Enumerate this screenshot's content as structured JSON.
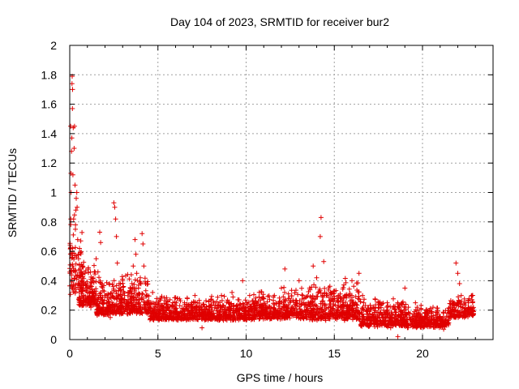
{
  "chart_data": {
    "type": "scatter",
    "title": "Day 104 of 2023, SRMTID for receiver bur2",
    "xlabel": "GPS time / hours",
    "ylabel": "SRMTID / TECUs",
    "xlim": [
      0,
      24
    ],
    "ylim": [
      0,
      2
    ],
    "xticks": [
      0,
      5,
      10,
      15,
      20
    ],
    "xtick_labels": [
      "0",
      "5",
      "10",
      "15",
      "20"
    ],
    "yticks": [
      0,
      0.2,
      0.4,
      0.6,
      0.8,
      1,
      1.2,
      1.4,
      1.6,
      1.8,
      2
    ],
    "ytick_labels": [
      "0",
      "0.2",
      "0.4",
      "0.6",
      "0.8",
      "1",
      "1.2",
      "1.4",
      "1.6",
      "1.8",
      "2"
    ],
    "grid": true,
    "marker": "+",
    "color": "#e00000",
    "series": [
      {
        "name": "SRMTID",
        "points": [
          [
            0.02,
            0.45
          ],
          [
            0.04,
            0.62
          ],
          [
            0.05,
            1.45
          ],
          [
            0.06,
            0.82
          ],
          [
            0.07,
            1.13
          ],
          [
            0.08,
            1.0
          ],
          [
            0.1,
            1.28
          ],
          [
            0.12,
            1.37
          ],
          [
            0.13,
            1.74
          ],
          [
            0.14,
            1.79
          ],
          [
            0.15,
            1.57
          ],
          [
            0.16,
            1.7
          ],
          [
            0.17,
            0.5
          ],
          [
            0.18,
            1.12
          ],
          [
            0.2,
            1.44
          ],
          [
            0.22,
            0.82
          ],
          [
            0.25,
            1.3
          ],
          [
            0.27,
            1.45
          ],
          [
            0.3,
            1.05
          ],
          [
            0.32,
            0.75
          ],
          [
            0.35,
            0.88
          ],
          [
            0.37,
            0.96
          ],
          [
            0.4,
            1.0
          ],
          [
            0.42,
            0.9
          ],
          [
            0.45,
            0.68
          ],
          [
            0.48,
            0.58
          ],
          [
            0.5,
            0.55
          ],
          [
            0.55,
            0.62
          ],
          [
            0.6,
            0.48
          ],
          [
            0.65,
            0.4
          ],
          [
            0.7,
            0.35
          ],
          [
            0.75,
            0.45
          ],
          [
            0.8,
            0.3
          ],
          [
            0.9,
            0.38
          ],
          [
            1.0,
            0.32
          ],
          [
            1.1,
            0.28
          ],
          [
            1.2,
            0.22
          ],
          [
            1.3,
            0.4
          ],
          [
            1.4,
            0.33
          ],
          [
            1.5,
            0.55
          ],
          [
            1.6,
            0.46
          ],
          [
            1.7,
            0.73
          ],
          [
            1.75,
            0.66
          ],
          [
            1.8,
            0.36
          ],
          [
            1.9,
            0.25
          ],
          [
            2.0,
            0.3
          ],
          [
            2.1,
            0.2
          ],
          [
            2.2,
            0.26
          ],
          [
            2.3,
            0.15
          ],
          [
            2.4,
            0.22
          ],
          [
            2.5,
            0.93
          ],
          [
            2.55,
            0.9
          ],
          [
            2.6,
            0.82
          ],
          [
            2.65,
            0.7
          ],
          [
            2.7,
            0.52
          ],
          [
            2.8,
            0.35
          ],
          [
            2.9,
            0.28
          ],
          [
            3.0,
            0.4
          ],
          [
            3.1,
            0.3
          ],
          [
            3.2,
            0.22
          ],
          [
            3.3,
            0.32
          ],
          [
            3.4,
            0.18
          ],
          [
            3.5,
            0.28
          ],
          [
            3.6,
            0.5
          ],
          [
            3.7,
            0.68
          ],
          [
            3.75,
            0.58
          ],
          [
            3.8,
            0.45
          ],
          [
            3.9,
            0.35
          ],
          [
            4.0,
            0.42
          ],
          [
            4.1,
            0.72
          ],
          [
            4.15,
            0.65
          ],
          [
            4.2,
            0.5
          ],
          [
            4.3,
            0.38
          ],
          [
            4.4,
            0.3
          ],
          [
            4.5,
            0.25
          ],
          [
            4.7,
            0.32
          ],
          [
            4.9,
            0.22
          ],
          [
            5.1,
            0.27
          ],
          [
            5.3,
            0.18
          ],
          [
            5.5,
            0.24
          ],
          [
            5.7,
            0.15
          ],
          [
            5.9,
            0.21
          ],
          [
            6.1,
            0.28
          ],
          [
            6.3,
            0.19
          ],
          [
            6.5,
            0.25
          ],
          [
            6.7,
            0.14
          ],
          [
            6.9,
            0.22
          ],
          [
            7.1,
            0.3
          ],
          [
            7.3,
            0.17
          ],
          [
            7.5,
            0.08
          ],
          [
            7.6,
            0.24
          ],
          [
            7.8,
            0.2
          ],
          [
            8.0,
            0.27
          ],
          [
            8.2,
            0.16
          ],
          [
            8.4,
            0.23
          ],
          [
            8.6,
            0.3
          ],
          [
            8.8,
            0.18
          ],
          [
            9.0,
            0.25
          ],
          [
            9.2,
            0.32
          ],
          [
            9.4,
            0.2
          ],
          [
            9.6,
            0.27
          ],
          [
            9.8,
            0.4
          ],
          [
            10.0,
            0.22
          ],
          [
            10.2,
            0.3
          ],
          [
            10.4,
            0.17
          ],
          [
            10.6,
            0.25
          ],
          [
            10.8,
            0.19
          ],
          [
            11.0,
            0.28
          ],
          [
            11.2,
            0.15
          ],
          [
            11.4,
            0.22
          ],
          [
            11.6,
            0.3
          ],
          [
            11.8,
            0.2
          ],
          [
            12.0,
            0.35
          ],
          [
            12.2,
            0.48
          ],
          [
            12.4,
            0.28
          ],
          [
            12.6,
            0.18
          ],
          [
            12.8,
            0.25
          ],
          [
            13.0,
            0.4
          ],
          [
            13.2,
            0.3
          ],
          [
            13.4,
            0.22
          ],
          [
            13.6,
            0.35
          ],
          [
            13.8,
            0.5
          ],
          [
            14.0,
            0.42
          ],
          [
            14.2,
            0.7
          ],
          [
            14.25,
            0.83
          ],
          [
            14.4,
            0.53
          ],
          [
            14.6,
            0.3
          ],
          [
            14.8,
            0.2
          ],
          [
            15.0,
            0.28
          ],
          [
            15.2,
            0.15
          ],
          [
            15.4,
            0.22
          ],
          [
            15.6,
            0.3
          ],
          [
            15.8,
            0.18
          ],
          [
            16.0,
            0.4
          ],
          [
            16.2,
            0.25
          ],
          [
            16.4,
            0.45
          ],
          [
            16.6,
            0.3
          ],
          [
            16.8,
            0.2
          ],
          [
            17.0,
            0.15
          ],
          [
            17.2,
            0.22
          ],
          [
            17.4,
            0.1
          ],
          [
            17.6,
            0.18
          ],
          [
            17.8,
            0.13
          ],
          [
            18.0,
            0.25
          ],
          [
            18.2,
            0.08
          ],
          [
            18.4,
            0.15
          ],
          [
            18.6,
            0.02
          ],
          [
            18.8,
            0.2
          ],
          [
            19.0,
            0.35
          ],
          [
            19.2,
            0.22
          ],
          [
            19.4,
            0.14
          ],
          [
            19.6,
            0.25
          ],
          [
            19.8,
            0.18
          ],
          [
            20.0,
            0.12
          ],
          [
            20.2,
            0.2
          ],
          [
            20.4,
            0.15
          ],
          [
            20.6,
            0.22
          ],
          [
            20.8,
            0.1
          ],
          [
            21.0,
            0.14
          ],
          [
            21.2,
            0.07
          ],
          [
            21.4,
            0.12
          ],
          [
            21.6,
            0.18
          ],
          [
            21.8,
            0.25
          ],
          [
            21.9,
            0.52
          ],
          [
            22.0,
            0.45
          ],
          [
            22.1,
            0.38
          ],
          [
            22.2,
            0.3
          ],
          [
            22.3,
            0.22
          ],
          [
            22.4,
            0.18
          ],
          [
            22.6,
            0.25
          ],
          [
            22.8,
            0.3
          ]
        ]
      }
    ],
    "point_density": [
      [
        0.0,
        0.8,
        0.2,
        0.9,
        90
      ],
      [
        0.5,
        1.5,
        0.18,
        0.5,
        140
      ],
      [
        1.5,
        2.5,
        0.12,
        0.4,
        150
      ],
      [
        2.5,
        4.5,
        0.12,
        0.45,
        260
      ],
      [
        4.5,
        7.5,
        0.1,
        0.3,
        360
      ],
      [
        7.5,
        10.5,
        0.1,
        0.3,
        360
      ],
      [
        10.5,
        13.5,
        0.1,
        0.35,
        360
      ],
      [
        13.5,
        16.5,
        0.08,
        0.4,
        380
      ],
      [
        16.5,
        19.0,
        0.05,
        0.28,
        300
      ],
      [
        19.0,
        21.5,
        0.05,
        0.25,
        300
      ],
      [
        21.5,
        22.9,
        0.12,
        0.3,
        160
      ]
    ]
  }
}
